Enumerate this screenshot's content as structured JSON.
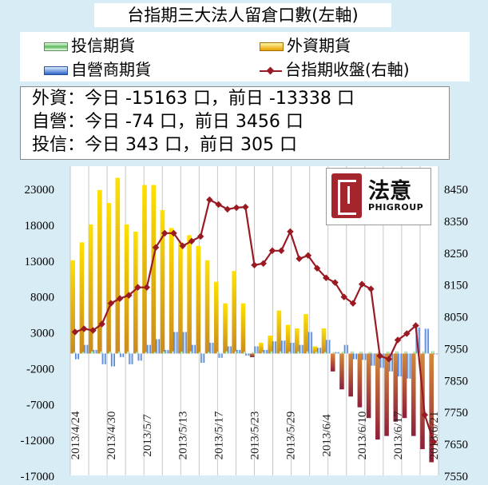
{
  "title": "台指期三大法人留倉口數(左軸)",
  "legend": {
    "investment_trust": "投信期貨",
    "foreign": "外資期貨",
    "dealer": "自營商期貨",
    "taiex": "台指期收盤(右軸)"
  },
  "summary": {
    "foreign": "外資：今日 -15163 口，前日 -13338 口",
    "dealer": "自營：今日 -74 口，前日 3456 口",
    "trust": "投信：今日 343 口，前日 305 口"
  },
  "logo": {
    "text": "法意",
    "sub": "PHIGROUP"
  },
  "colors": {
    "foreign": "#e8a000",
    "foreign_neg": "#8e1f3a",
    "dealer": "#2d63c8",
    "trust": "#5fb85f",
    "line": "#9a1a24",
    "background": "#d8ecf6"
  },
  "chart_data": {
    "type": "bar",
    "grid": "vertical",
    "left_axis": {
      "ylim": [
        -17000,
        23000
      ],
      "ticks": [
        "23000",
        "18000",
        "13000",
        "8000",
        "3000",
        "-2000",
        "-7000",
        "-12000",
        "-17000"
      ]
    },
    "right_axis": {
      "ylim": [
        7550,
        8450
      ],
      "ticks": [
        "8450",
        "8350",
        "8250",
        "8150",
        "8050",
        "7950",
        "7850",
        "7750",
        "7650",
        "7550"
      ]
    },
    "x_tick_labels": [
      "2013/4/24",
      "2013/4/30",
      "2013/5/7",
      "2013/5/13",
      "2013/5/17",
      "2013/5/23",
      "2013/5/29",
      "2013/6/4",
      "2013/6/10",
      "2013/6/17",
      "2013/6/21"
    ],
    "x_tick_indices": [
      0,
      4,
      8,
      12,
      16,
      20,
      24,
      28,
      32,
      36,
      40
    ],
    "series": [
      {
        "name": "外資期貨",
        "axis": "left",
        "values": [
          13000,
          15500,
          18000,
          22800,
          21000,
          24500,
          18000,
          17000,
          23500,
          23500,
          20000,
          17500,
          15500,
          16500,
          15000,
          13000,
          10000,
          7000,
          11500,
          7000,
          -500,
          1500,
          2500,
          6000,
          4000,
          3500,
          5500,
          1000,
          3500,
          -2500,
          -5000,
          -6000,
          -7500,
          -9000,
          -12000,
          -11500,
          -9500,
          -9000,
          -11500,
          -13338,
          -15163
        ]
      },
      {
        "name": "自營商期貨",
        "axis": "left",
        "values": [
          -800,
          1200,
          500,
          -1500,
          -1800,
          -500,
          -1500,
          -1000,
          1200,
          2000,
          500,
          3000,
          3000,
          1200,
          -1300,
          1500,
          -600,
          1000,
          500,
          -300,
          1000,
          500,
          1700,
          1800,
          1500,
          1200,
          3000,
          800,
          1900,
          200,
          1200,
          -800,
          -900,
          -1700,
          -2000,
          -2500,
          -3200,
          -3500,
          3600,
          3456,
          -74
        ]
      },
      {
        "name": "投信期貨",
        "axis": "left",
        "values": [
          200,
          200,
          300,
          300,
          250,
          250,
          300,
          200,
          200,
          200,
          250,
          300,
          250,
          300,
          200,
          200,
          250,
          300,
          300,
          250,
          200,
          200,
          300,
          300,
          250,
          300,
          300,
          250,
          200,
          200,
          250,
          300,
          250,
          200,
          200,
          250,
          300,
          300,
          300,
          305,
          343
        ]
      },
      {
        "name": "台指期收盤(右軸)",
        "axis": "right",
        "type": "line",
        "values": [
          8000,
          8010,
          8005,
          8025,
          8090,
          8105,
          8115,
          8140,
          8140,
          8265,
          8310,
          8310,
          8270,
          8285,
          8300,
          8415,
          8400,
          8385,
          8390,
          8392,
          8210,
          8215,
          8255,
          8255,
          8315,
          8230,
          8240,
          8200,
          8170,
          8155,
          8110,
          8090,
          8150,
          8135,
          7925,
          7915,
          7975,
          7995,
          8020,
          7740,
          7655
        ]
      }
    ]
  }
}
